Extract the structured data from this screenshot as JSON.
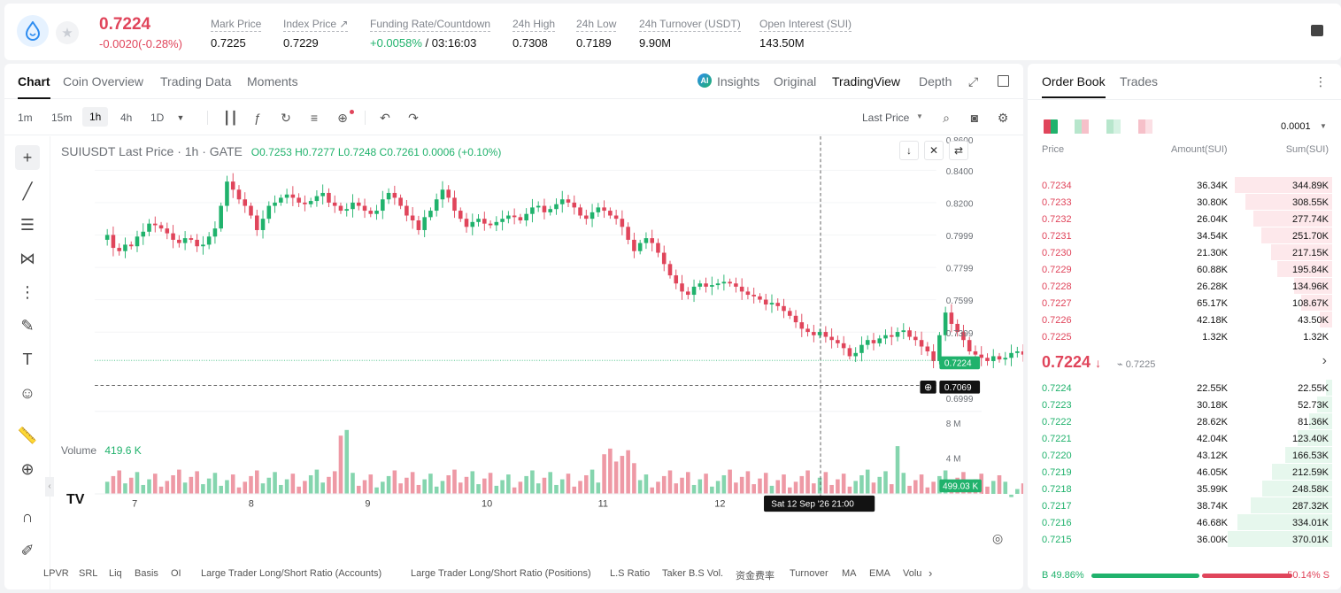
{
  "ticker": {
    "last_price": "0.7224",
    "change": "-0.0020(-0.28%)",
    "stats": [
      {
        "key": "Mark Price",
        "value": "0.7225"
      },
      {
        "key": "Index Price ↗",
        "value": "0.7229"
      },
      {
        "key": "24h High",
        "value": "0.7308"
      },
      {
        "key": "24h Low",
        "value": "0.7189"
      },
      {
        "key": "24h Turnover (USDT)",
        "value": "9.90M"
      },
      {
        "key": "Open Interest (SUI)",
        "value": "143.50M"
      }
    ],
    "funding_key": "Funding Rate/Countdown",
    "funding_rate": "+0.0058%",
    "countdown": "/ 03:16:03"
  },
  "chart_tabs": [
    "Chart",
    "Coin Overview",
    "Trading Data",
    "Moments"
  ],
  "view_tabs": [
    "Insights",
    "Original",
    "TradingView",
    "Depth"
  ],
  "timeframes": [
    "1m",
    "15m",
    "1h",
    "4h",
    "1D"
  ],
  "active_timeframe": "1h",
  "price_type": "Last Price",
  "legend": {
    "symbol": "SUIUSDT Last Price · 1h · GATE",
    "ohlc": "O0.7253 H0.7277 L0.7248 C0.7261 0.0006 (+0.10%)"
  },
  "volume_label": "Volume",
  "volume_value": "419.6 K",
  "price_axis": [
    "0.8600",
    "0.8400",
    "0.8200",
    "0.7999",
    "0.7799",
    "0.7599",
    "0.7399",
    "0.7224",
    "0.7069",
    "0.6999"
  ],
  "volume_axis": [
    "8 M",
    "4 M",
    "499.03 K"
  ],
  "date_axis": [
    "7",
    "8",
    "9",
    "10",
    "11",
    "12"
  ],
  "crosshair_date": "Sat 12 Sep '26   21:00",
  "indicators": [
    "LPVR",
    "SRL",
    "Liq",
    "Basis",
    "OI",
    "Large Trader Long/Short Ratio (Accounts)",
    "Large Trader Long/Short Ratio (Positions)",
    "L.S Ratio",
    "Taker B.S Vol.",
    "资金费率",
    "Turnover",
    "MA",
    "EMA",
    "Volu"
  ],
  "orderbook": {
    "tabs": [
      "Order Book",
      "Trades"
    ],
    "precision": "0.0001",
    "headers": [
      "Price",
      "Amount(SUI)",
      "Sum(SUI)"
    ],
    "asks": [
      [
        "0.7234",
        "36.34K",
        "344.89K"
      ],
      [
        "0.7233",
        "30.80K",
        "308.55K"
      ],
      [
        "0.7232",
        "26.04K",
        "277.74K"
      ],
      [
        "0.7231",
        "34.54K",
        "251.70K"
      ],
      [
        "0.7230",
        "21.30K",
        "217.15K"
      ],
      [
        "0.7229",
        "60.88K",
        "195.84K"
      ],
      [
        "0.7228",
        "26.28K",
        "134.96K"
      ],
      [
        "0.7227",
        "65.17K",
        "108.67K"
      ],
      [
        "0.7226",
        "42.18K",
        "43.50K"
      ],
      [
        "0.7225",
        "1.32K",
        "1.32K"
      ]
    ],
    "mid_price": "0.7224",
    "mark": "0.7225",
    "bids": [
      [
        "0.7224",
        "22.55K",
        "22.55K"
      ],
      [
        "0.7223",
        "30.18K",
        "52.73K"
      ],
      [
        "0.7222",
        "28.62K",
        "81.36K"
      ],
      [
        "0.7221",
        "42.04K",
        "123.40K"
      ],
      [
        "0.7220",
        "43.12K",
        "166.53K"
      ],
      [
        "0.7219",
        "46.05K",
        "212.59K"
      ],
      [
        "0.7218",
        "35.99K",
        "248.58K"
      ],
      [
        "0.7217",
        "38.74K",
        "287.32K"
      ],
      [
        "0.7216",
        "46.68K",
        "334.01K"
      ],
      [
        "0.7215",
        "36.00K",
        "370.01K"
      ]
    ],
    "buy_ratio": "B 49.86%",
    "sell_ratio": "50.14% S"
  },
  "colors": {
    "up": "#20b26c",
    "down": "#e0455b"
  }
}
